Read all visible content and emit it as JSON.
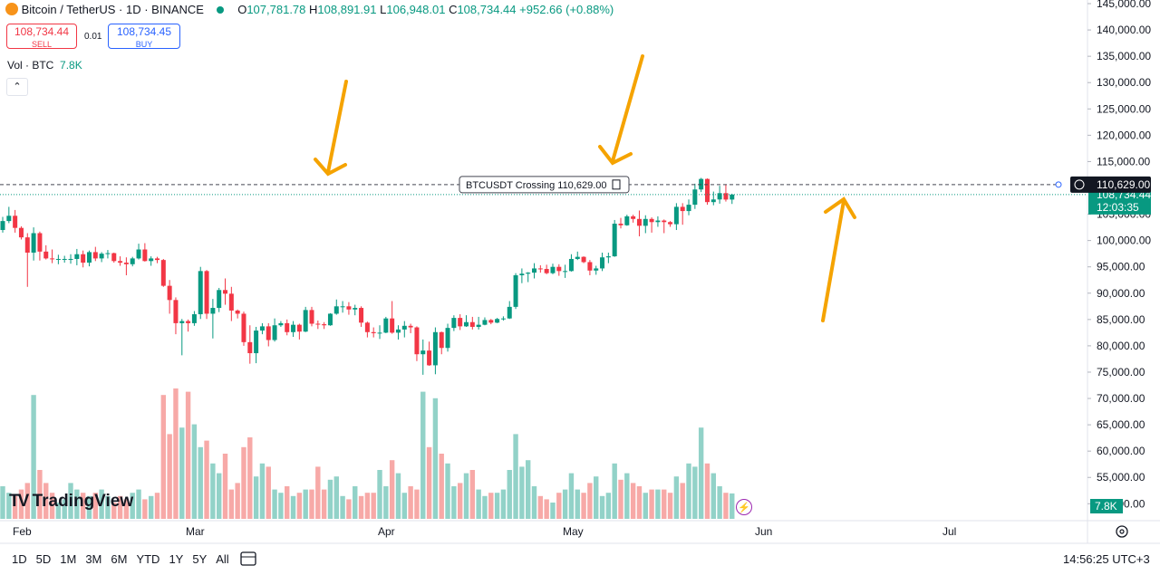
{
  "header": {
    "symbol": "Bitcoin / TetherUS · 1D · BINANCE",
    "o_label": "O",
    "o": "107,781.78",
    "h_label": "H",
    "h": "108,891.91",
    "l_label": "L",
    "l": "106,948.01",
    "c_label": "C",
    "c": "108,734.44",
    "change": "+952.66 (+0.88%)"
  },
  "trade": {
    "sell_price": "108,734.44",
    "sell": "SELL",
    "spread": "0.01",
    "buy_price": "108,734.45",
    "buy": "BUY"
  },
  "volume_legend": {
    "name": "Vol · BTC",
    "value": "7.8K"
  },
  "logo": "TradingView",
  "time_axis": [
    "Feb",
    "Mar",
    "Apr",
    "May",
    "Jun",
    "Jul"
  ],
  "ranges": [
    "1D",
    "5D",
    "1M",
    "3M",
    "6M",
    "YTD",
    "1Y",
    "5Y",
    "All"
  ],
  "clock": "14:56:25 UTC+3",
  "chart_data": {
    "type": "candlestick",
    "up_color": "#089981",
    "down_color": "#f23645",
    "grid": false,
    "ylim": [
      47130,
      145690
    ],
    "yticks": [
      {
        "value": 145000,
        "label": "145,000.00"
      },
      {
        "value": 140000,
        "label": "140,000.00"
      },
      {
        "value": 135000,
        "label": "135,000.00"
      },
      {
        "value": 130000,
        "label": "130,000.00"
      },
      {
        "value": 125000,
        "label": "125,000.00"
      },
      {
        "value": 120000,
        "label": "120,000.00"
      },
      {
        "value": 115000,
        "label": "115,000.00"
      },
      {
        "value": 110000,
        "label": "110,000.00"
      },
      {
        "value": 105000,
        "label": "105,000.00"
      },
      {
        "value": 100000,
        "label": "100,000.00"
      },
      {
        "value": 95000,
        "label": "95,000.00"
      },
      {
        "value": 90000,
        "label": "90,000.00"
      },
      {
        "value": 85000,
        "label": "85,000.00"
      },
      {
        "value": 80000,
        "label": "80,000.00"
      },
      {
        "value": 75000,
        "label": "75,000.00"
      },
      {
        "value": 70000,
        "label": "70,000.00"
      },
      {
        "value": 65000,
        "label": "65,000.00"
      },
      {
        "value": 60000,
        "label": "60,000.00"
      },
      {
        "value": 55000,
        "label": "55,000.00"
      },
      {
        "value": 50000,
        "label": "50,000.00"
      }
    ],
    "alert": {
      "value": 110629,
      "label": "110,629.00",
      "text": "BTCUSDT Crossing 110,629.00"
    },
    "last_price": {
      "value": 108734.44,
      "label": "108,734.44",
      "countdown": "12:03:35"
    },
    "volume_label": "7.8K",
    "candles": [
      [
        102000,
        104500,
        101500,
        103700
      ],
      [
        103700,
        106400,
        103300,
        104700
      ],
      [
        104700,
        105800,
        101500,
        102400
      ],
      [
        102400,
        102700,
        100200,
        100600
      ],
      [
        100600,
        101400,
        91200,
        97700
      ],
      [
        97700,
        102500,
        96200,
        101400
      ],
      [
        101400,
        101700,
        96200,
        97900
      ],
      [
        97900,
        99100,
        96400,
        96600
      ],
      [
        96600,
        98300,
        95700,
        96500
      ],
      [
        96500,
        97300,
        95500,
        96500
      ],
      [
        96500,
        97100,
        95800,
        96500
      ],
      [
        96500,
        97400,
        95600,
        96500
      ],
      [
        96500,
        98400,
        95300,
        97400
      ],
      [
        97400,
        98100,
        94900,
        95800
      ],
      [
        95800,
        98100,
        95100,
        97800
      ],
      [
        97800,
        98800,
        96100,
        96600
      ],
      [
        96600,
        97800,
        95900,
        97500
      ],
      [
        97500,
        98200,
        96600,
        97600
      ],
      [
        97600,
        97700,
        95800,
        96100
      ],
      [
        96100,
        97000,
        95200,
        95800
      ],
      [
        95800,
        96800,
        93400,
        95500
      ],
      [
        95500,
        96900,
        95100,
        96600
      ],
      [
        96600,
        99400,
        96400,
        98300
      ],
      [
        98300,
        99500,
        96000,
        96100
      ],
      [
        96100,
        97000,
        95200,
        96600
      ],
      [
        96600,
        96900,
        95700,
        96300
      ],
      [
        96300,
        96500,
        91200,
        91400
      ],
      [
        91400,
        92500,
        86100,
        88700
      ],
      [
        88700,
        89200,
        82200,
        84300
      ],
      [
        84300,
        85100,
        78200,
        84700
      ],
      [
        84700,
        85000,
        82700,
        84300
      ],
      [
        84300,
        86600,
        83800,
        86000
      ],
      [
        86000,
        95000,
        85100,
        94200
      ],
      [
        94200,
        94400,
        85100,
        86100
      ],
      [
        86100,
        88900,
        81400,
        87200
      ],
      [
        87200,
        91000,
        86400,
        90600
      ],
      [
        90600,
        92800,
        87800,
        89900
      ],
      [
        89900,
        91200,
        84700,
        86700
      ],
      [
        86700,
        86900,
        85200,
        86100
      ],
      [
        86100,
        86500,
        80000,
        80700
      ],
      [
        80700,
        83900,
        76600,
        78600
      ],
      [
        78600,
        83600,
        76700,
        82900
      ],
      [
        82900,
        84300,
        82200,
        83700
      ],
      [
        83700,
        84300,
        79900,
        81100
      ],
      [
        81100,
        85200,
        80800,
        83900
      ],
      [
        83900,
        84700,
        83600,
        84300
      ],
      [
        84300,
        85000,
        82000,
        82600
      ],
      [
        82600,
        84700,
        81700,
        84000
      ],
      [
        84000,
        84200,
        81200,
        82700
      ],
      [
        82700,
        87400,
        82600,
        86800
      ],
      [
        86800,
        87400,
        83700,
        84200
      ],
      [
        84200,
        84800,
        83200,
        84100
      ],
      [
        84100,
        84500,
        83200,
        83900
      ],
      [
        83900,
        86200,
        83800,
        86100
      ],
      [
        86100,
        88800,
        85900,
        87500
      ],
      [
        87500,
        88500,
        86300,
        87500
      ],
      [
        87500,
        88300,
        85900,
        86900
      ],
      [
        86900,
        87800,
        85800,
        87200
      ],
      [
        87200,
        87500,
        83600,
        84400
      ],
      [
        84400,
        84600,
        81600,
        82600
      ],
      [
        82600,
        83500,
        81600,
        82400
      ],
      [
        82400,
        83900,
        81300,
        82500
      ],
      [
        82500,
        85500,
        82400,
        85200
      ],
      [
        85200,
        88500,
        82300,
        82500
      ],
      [
        82500,
        83900,
        81200,
        83100
      ],
      [
        83100,
        84700,
        81600,
        83800
      ],
      [
        83800,
        84200,
        82400,
        83500
      ],
      [
        83500,
        83700,
        77100,
        78400
      ],
      [
        78400,
        81200,
        74500,
        79100
      ],
      [
        79100,
        80800,
        76200,
        76300
      ],
      [
        76300,
        83500,
        74600,
        82600
      ],
      [
        82600,
        82700,
        78400,
        79600
      ],
      [
        79600,
        84200,
        78900,
        83400
      ],
      [
        83400,
        85800,
        82800,
        85300
      ],
      [
        85300,
        86000,
        83000,
        83700
      ],
      [
        83700,
        85800,
        83600,
        84500
      ],
      [
        84500,
        85500,
        83100,
        83600
      ],
      [
        83600,
        85500,
        83100,
        84000
      ],
      [
        84000,
        85400,
        83900,
        84900
      ],
      [
        84900,
        85100,
        84100,
        84400
      ],
      [
        84400,
        85300,
        84300,
        85100
      ],
      [
        85100,
        85600,
        84800,
        85200
      ],
      [
        85200,
        88500,
        85100,
        87400
      ],
      [
        87400,
        93800,
        87000,
        93400
      ],
      [
        93400,
        94700,
        91900,
        93700
      ],
      [
        93700,
        94000,
        92100,
        93900
      ],
      [
        93900,
        95700,
        92800,
        94700
      ],
      [
        94700,
        95300,
        93900,
        94600
      ],
      [
        94600,
        95400,
        93600,
        93800
      ],
      [
        93800,
        95600,
        93600,
        95000
      ],
      [
        95000,
        95500,
        93300,
        94200
      ],
      [
        94200,
        95400,
        92900,
        94200
      ],
      [
        94200,
        97400,
        94100,
        96500
      ],
      [
        96500,
        97900,
        96300,
        96900
      ],
      [
        96900,
        97000,
        95700,
        95900
      ],
      [
        95900,
        96300,
        93400,
        94300
      ],
      [
        94300,
        95200,
        93500,
        94700
      ],
      [
        94700,
        97700,
        94200,
        96800
      ],
      [
        96800,
        97700,
        95700,
        97000
      ],
      [
        97000,
        103900,
        96900,
        103200
      ],
      [
        103200,
        104300,
        102300,
        102900
      ],
      [
        102900,
        104900,
        102800,
        104600
      ],
      [
        104600,
        104900,
        103400,
        104100
      ],
      [
        104100,
        105700,
        100800,
        102800
      ],
      [
        102800,
        104800,
        101400,
        104100
      ],
      [
        104100,
        104400,
        101500,
        103500
      ],
      [
        103500,
        104600,
        102600,
        103800
      ],
      [
        103800,
        104000,
        101400,
        103500
      ],
      [
        103500,
        103700,
        102600,
        103100
      ],
      [
        103100,
        107100,
        102000,
        106400
      ],
      [
        106400,
        107100,
        103000,
        105600
      ],
      [
        105600,
        107800,
        104800,
        106800
      ],
      [
        106800,
        110800,
        106000,
        109700
      ],
      [
        109700,
        111900,
        109200,
        111700
      ],
      [
        111700,
        111800,
        106800,
        107300
      ],
      [
        107300,
        109300,
        106700,
        107800
      ],
      [
        107800,
        110400,
        107000,
        109000
      ],
      [
        109000,
        110700,
        107400,
        107780
      ],
      [
        107781.78,
        108891.91,
        106948.01,
        108734.44
      ]
    ],
    "volumes": [
      10,
      8,
      7,
      9,
      11,
      38,
      15,
      11,
      8,
      5,
      6,
      11,
      9,
      8,
      7,
      8,
      9,
      7,
      5,
      7,
      6,
      8,
      9,
      6,
      7,
      8,
      38,
      26,
      40,
      28,
      39,
      29,
      22,
      24,
      17,
      14,
      20,
      9,
      11,
      22,
      25,
      13,
      17,
      16,
      9,
      8,
      10,
      7,
      8,
      9,
      9,
      16,
      9,
      12,
      13,
      7,
      6,
      10,
      7,
      8,
      8,
      15,
      10,
      18,
      14,
      8,
      10,
      9,
      39,
      22,
      37,
      20,
      17,
      10,
      11,
      14,
      15,
      9,
      7,
      8,
      8,
      9,
      15,
      26,
      16,
      18,
      10,
      7,
      6,
      5,
      8,
      9,
      14,
      9,
      8,
      11,
      13,
      7,
      8,
      17,
      12,
      14,
      11,
      10,
      8,
      9,
      9,
      9,
      8,
      13,
      11,
      17,
      16,
      28,
      17,
      14,
      10,
      8,
      7.8
    ]
  }
}
